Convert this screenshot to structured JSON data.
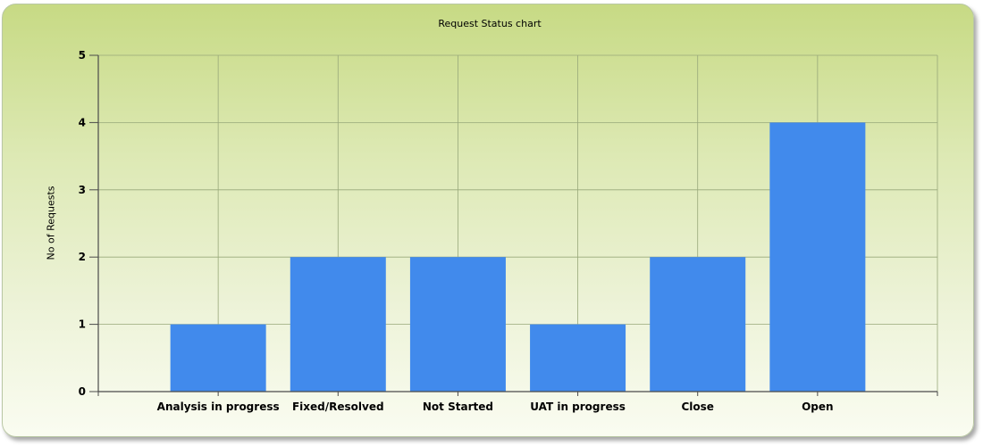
{
  "chart_data": {
    "type": "bar",
    "title": "Request Status chart",
    "xlabel": "",
    "ylabel": "No of Requests",
    "categories": [
      "Analysis in progress",
      "Fixed/Resolved",
      "Not Started",
      "UAT in progress",
      "Close",
      "Open"
    ],
    "values": [
      1,
      2,
      2,
      1,
      2,
      4
    ],
    "ylim": [
      0,
      5
    ],
    "yticks": [
      0,
      1,
      2,
      3,
      4,
      5
    ],
    "grid": true,
    "legend": "none",
    "colors": {
      "bar": "#418aec",
      "grid": "#98a87a",
      "axis": "#4a4a4a",
      "background_top": "#c7da84",
      "background_bottom": "#fafcf1"
    }
  }
}
